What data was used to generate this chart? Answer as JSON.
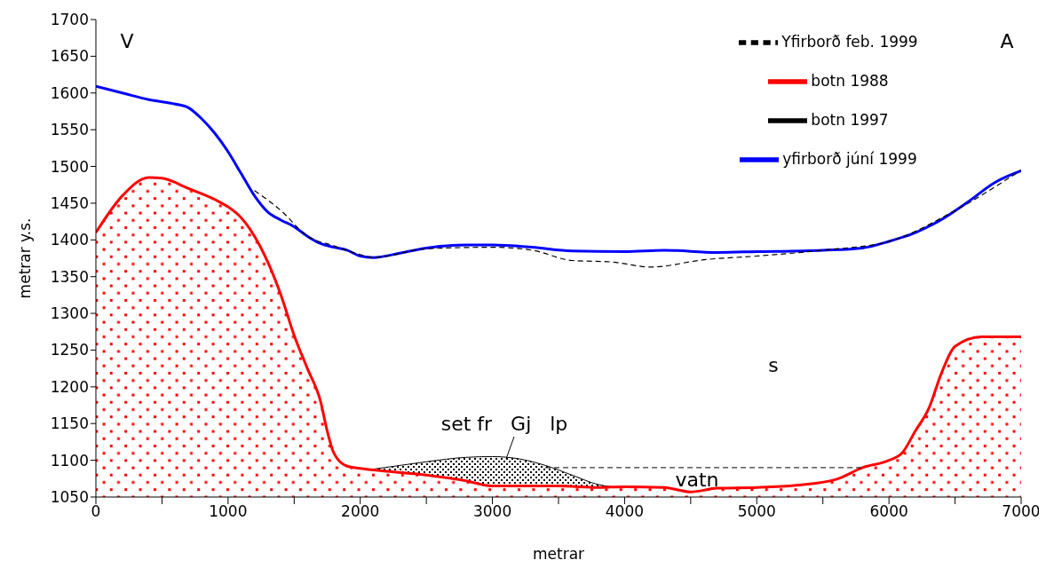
{
  "chart_data": {
    "type": "line",
    "xlabel": "metrar",
    "ylabel": "metrar y.s.",
    "xlim": [
      0,
      7000
    ],
    "ylim": [
      1050,
      1700
    ],
    "xticks": [
      0,
      {
        "value": 500,
        "label": null
      },
      1000,
      {
        "value": 1500,
        "label": null
      },
      2000,
      {
        "value": 2500,
        "label": null
      },
      3000,
      {
        "value": 3500,
        "label": null
      },
      4000,
      {
        "value": 4500,
        "label": null
      },
      5000,
      {
        "value": 5500,
        "label": null
      },
      6000,
      {
        "value": 6500,
        "label": null
      },
      7000
    ],
    "yticks": [
      1050,
      1100,
      1150,
      1200,
      1250,
      1300,
      1350,
      1400,
      1450,
      1500,
      1550,
      1600,
      1650,
      1700
    ],
    "grid": false,
    "legend": "top right",
    "marker": "none",
    "series": [
      {
        "name": "yfirborð júní 1999",
        "color": "#0000ff",
        "line_style": "solid",
        "x": [
          0,
          200,
          400,
          600,
          700,
          800,
          900,
          1000,
          1100,
          1200,
          1300,
          1400,
          1500,
          1600,
          1700,
          1800,
          1900,
          2000,
          2100,
          2300,
          2500,
          2800,
          3000,
          3300,
          3600,
          4000,
          4300,
          4700,
          5000,
          5500,
          5800,
          6000,
          6200,
          6400,
          6600,
          6800,
          7000
        ],
        "values": [
          1609,
          1600,
          1591,
          1585,
          1580,
          1565,
          1545,
          1520,
          1490,
          1460,
          1438,
          1427,
          1418,
          1405,
          1395,
          1390,
          1386,
          1378,
          1376,
          1382,
          1389,
          1393,
          1393,
          1390,
          1385,
          1384,
          1386,
          1383,
          1384,
          1386,
          1389,
          1398,
          1410,
          1428,
          1452,
          1478,
          1494
        ]
      },
      {
        "name": "Yfirborð feb. 1999",
        "color": "#000000",
        "line_style": "dashed",
        "x": [
          1200,
          1400,
          1600,
          1800,
          2000,
          2100,
          2500,
          3000,
          3300,
          3600,
          3900,
          4200,
          4600,
          5000,
          5500,
          6000,
          6500,
          7000
        ],
        "values": [
          1467,
          1440,
          1405,
          1392,
          1380,
          1376,
          1388,
          1390,
          1386,
          1372,
          1370,
          1363,
          1373,
          1378,
          1386,
          1398,
          1440,
          1495
        ]
      },
      {
        "name": "botn 1997",
        "type": "area",
        "color": "#000000",
        "line_style": "solid",
        "x": [
          2100,
          2300,
          2500,
          2800,
          3000,
          3200,
          3400,
          3600,
          3800,
          3900
        ],
        "values": [
          1088,
          1093,
          1098,
          1104,
          1105,
          1102,
          1093,
          1080,
          1067,
          1064
        ]
      },
      {
        "name": "botn 1988",
        "type": "area",
        "color": "#ff0000",
        "line_style": "solid",
        "x": [
          0,
          200,
          400,
          500,
          700,
          900,
          1000,
          1100,
          1200,
          1300,
          1400,
          1500,
          1600,
          1700,
          1750,
          1800,
          1900,
          2000,
          2200,
          2500,
          2800,
          3000,
          3500,
          3800,
          4000,
          4300,
          4500,
          4700,
          5000,
          5300,
          5600,
          5800,
          6000,
          6100,
          6200,
          6300,
          6400,
          6500,
          6700,
          7000
        ],
        "values": [
          1410,
          1460,
          1485,
          1484,
          1470,
          1455,
          1445,
          1430,
          1405,
          1370,
          1325,
          1270,
          1225,
          1180,
          1140,
          1110,
          1092,
          1089,
          1085,
          1080,
          1072,
          1065,
          1065,
          1063,
          1064,
          1063,
          1057,
          1062,
          1063,
          1066,
          1074,
          1090,
          1100,
          1110,
          1140,
          1170,
          1220,
          1255,
          1268,
          1268
        ]
      },
      {
        "color": "#000000",
        "line_style": "dashed",
        "x": [
          3400,
          5790
        ],
        "values": [
          1090,
          1090
        ]
      }
    ],
    "annotations": [
      "V",
      "A",
      "s",
      "set fr   Gj   lp",
      "vatn"
    ]
  }
}
